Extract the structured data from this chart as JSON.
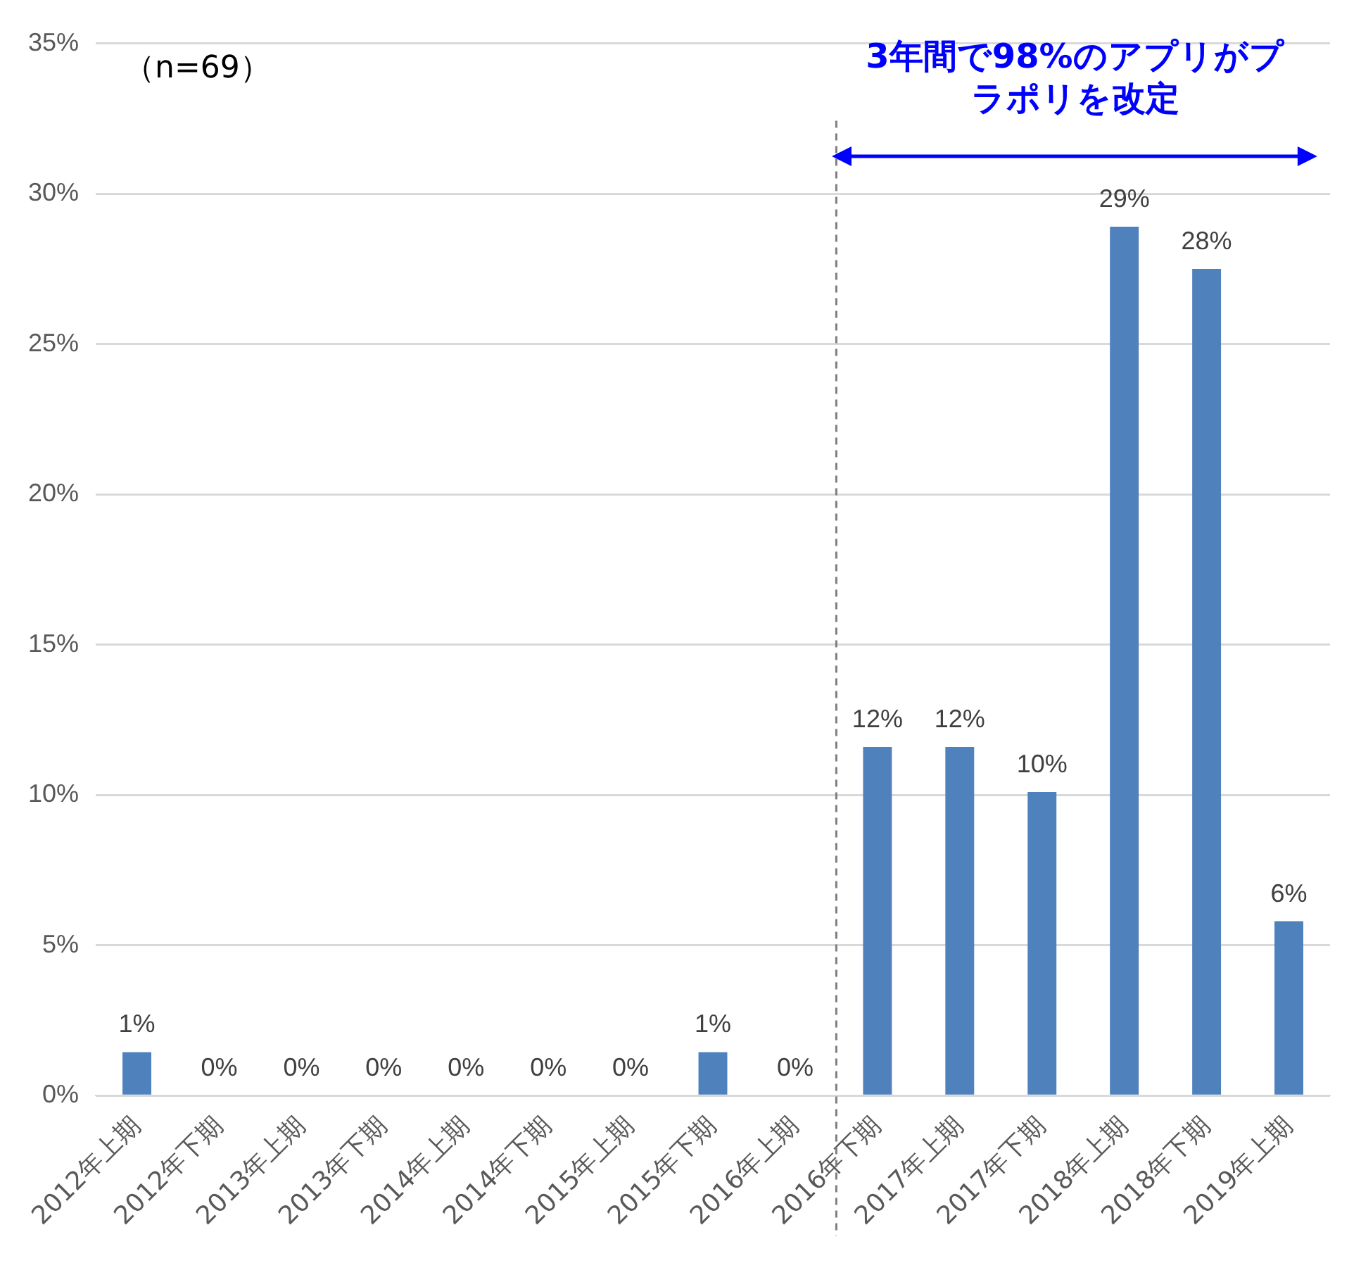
{
  "chart_data": {
    "type": "bar",
    "categories": [
      "2012年上期",
      "2012年下期",
      "2013年上期",
      "2013年下期",
      "2014年上期",
      "2014年下期",
      "2015年上期",
      "2015年下期",
      "2016年上期",
      "2016年下期",
      "2017年上期",
      "2017年下期",
      "2018年上期",
      "2018年下期",
      "2019年上期"
    ],
    "values": [
      1.45,
      0,
      0,
      0,
      0,
      0,
      0,
      1.45,
      0,
      11.6,
      11.6,
      10.1,
      28.9,
      27.5,
      5.8
    ],
    "value_labels": [
      "1%",
      "0%",
      "0%",
      "0%",
      "0%",
      "0%",
      "0%",
      "1%",
      "0%",
      "12%",
      "12%",
      "10%",
      "29%",
      "28%",
      "6%"
    ],
    "color": "#4f81bd",
    "ylim": [
      0,
      35
    ],
    "yticks": [
      {
        "value": 0,
        "label": "0%"
      },
      {
        "value": 5,
        "label": "5%"
      },
      {
        "value": 10,
        "label": "10%"
      },
      {
        "value": 15,
        "label": "15%"
      },
      {
        "value": 20,
        "label": "20%"
      },
      {
        "value": 25,
        "label": "25%"
      },
      {
        "value": 30,
        "label": "30%"
      },
      {
        "value": 35,
        "label": "35%"
      }
    ],
    "grid": "y",
    "ref_lines": [
      {
        "axis": "x",
        "value": "2016年下期",
        "color": "#7f7f7f",
        "line_style": "dashed"
      }
    ],
    "legend": false,
    "annotations": [
      "（n=69）",
      "3年間で98%のアプリがプラポリを改定"
    ]
  }
}
